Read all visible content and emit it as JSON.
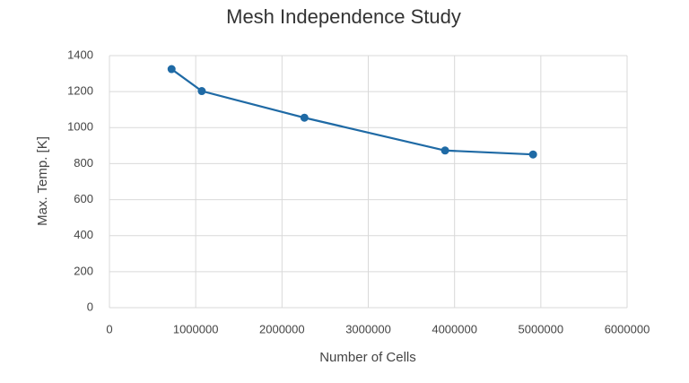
{
  "chart_data": {
    "type": "line",
    "title": "Mesh Independence Study",
    "xlabel": "Number of Cells",
    "ylabel": "Max. Temp. [K]",
    "series": [
      {
        "name": "Max. Temp.",
        "color": "#1f6aa5",
        "x": [
          720000,
          1070000,
          2260000,
          3890000,
          4910000
        ],
        "values": [
          1325,
          1203,
          1055,
          873,
          851
        ]
      }
    ],
    "xlim": [
      0,
      6000000
    ],
    "xticks": [
      0,
      1000000,
      2000000,
      3000000,
      4000000,
      5000000,
      6000000
    ],
    "ylim": [
      0,
      1400
    ],
    "yticks": [
      0,
      200,
      400,
      600,
      800,
      1000,
      1200,
      1400
    ],
    "grid": true
  }
}
